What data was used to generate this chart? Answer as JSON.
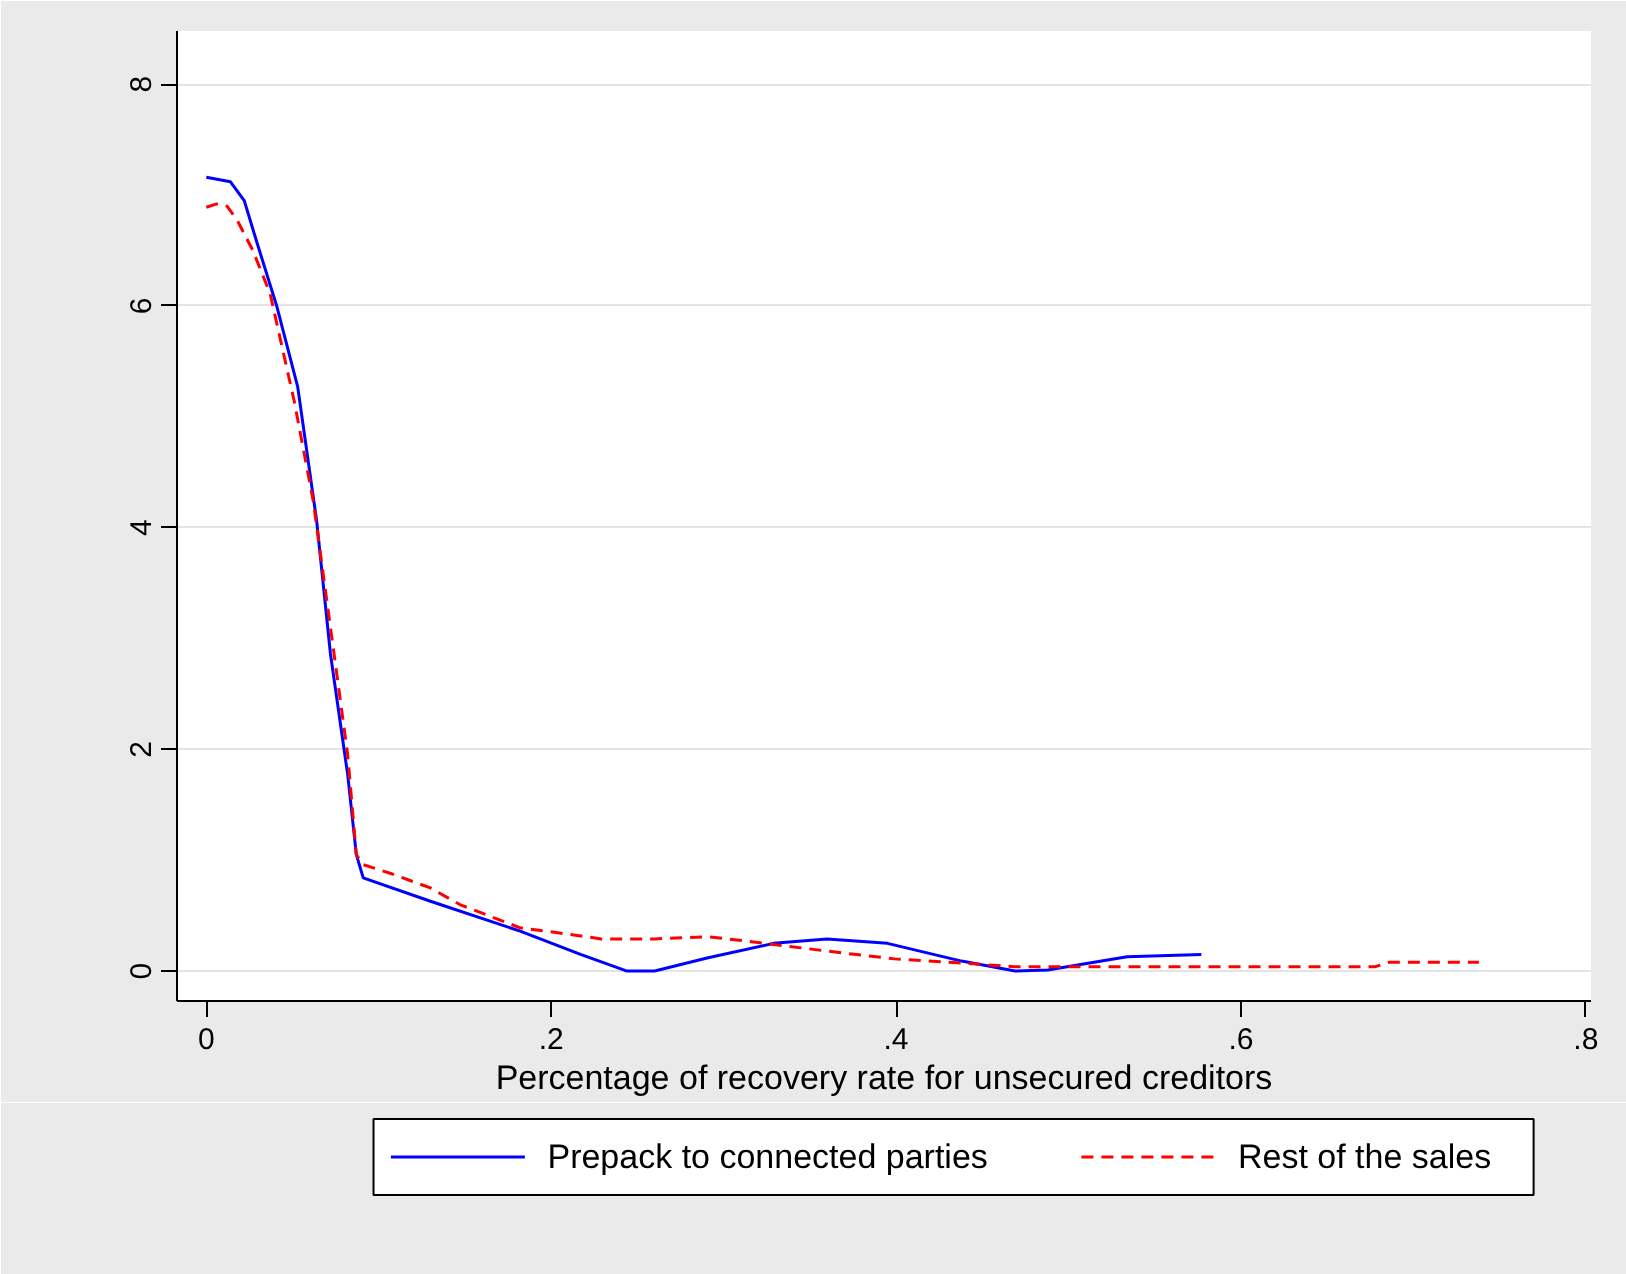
{
  "chart_data": {
    "type": "line",
    "xlabel": "Percentage of recovery rate for unsecured creditors",
    "xlim": [
      -0.017,
      0.803
    ],
    "ylim": [
      -0.27,
      8.48
    ],
    "xticks": [
      0,
      {
        "value": 0.2,
        "label": ".2"
      },
      {
        "value": 0.4,
        "label": ".4"
      },
      {
        "value": 0.6,
        "label": ".6"
      },
      {
        "value": 0.8,
        "label": ".8"
      }
    ],
    "yticks": [
      0,
      2,
      4,
      6,
      8
    ],
    "grid": "y",
    "legend": "bottom",
    "series": [
      {
        "name": "Prepack to connected parties",
        "color": "#0000ff",
        "line_style": "solid",
        "x": [
          0.0,
          0.014,
          0.022,
          0.029,
          0.041,
          0.053,
          0.064,
          0.072,
          0.082,
          0.087,
          0.091,
          0.13,
          0.182,
          0.217,
          0.244,
          0.26,
          0.291,
          0.329,
          0.36,
          0.395,
          0.438,
          0.469,
          0.488,
          0.507,
          0.534,
          0.577
        ],
        "values": [
          7.16,
          7.12,
          6.95,
          6.59,
          5.99,
          5.27,
          4.06,
          2.86,
          1.77,
          1.05,
          0.84,
          0.63,
          0.36,
          0.15,
          0.0,
          0.0,
          0.12,
          0.25,
          0.29,
          0.25,
          0.09,
          0.0,
          0.01,
          0.06,
          0.13,
          0.15
        ]
      },
      {
        "name": "Rest of the sales",
        "color": "#ff0000",
        "line_style": "dashed",
        "x": [
          0.0,
          0.006,
          0.012,
          0.018,
          0.027,
          0.037,
          0.051,
          0.062,
          0.072,
          0.082,
          0.087,
          0.091,
          0.107,
          0.13,
          0.147,
          0.182,
          0.202,
          0.229,
          0.26,
          0.291,
          0.314,
          0.36,
          0.399,
          0.43,
          0.469,
          0.507,
          0.585,
          0.678,
          0.686,
          0.738
        ],
        "values": [
          6.89,
          6.92,
          6.9,
          6.77,
          6.5,
          6.11,
          5.14,
          4.24,
          3.1,
          1.95,
          1.05,
          0.96,
          0.88,
          0.75,
          0.6,
          0.39,
          0.35,
          0.29,
          0.29,
          0.31,
          0.27,
          0.18,
          0.11,
          0.08,
          0.04,
          0.04,
          0.04,
          0.04,
          0.08,
          0.08
        ]
      }
    ]
  }
}
